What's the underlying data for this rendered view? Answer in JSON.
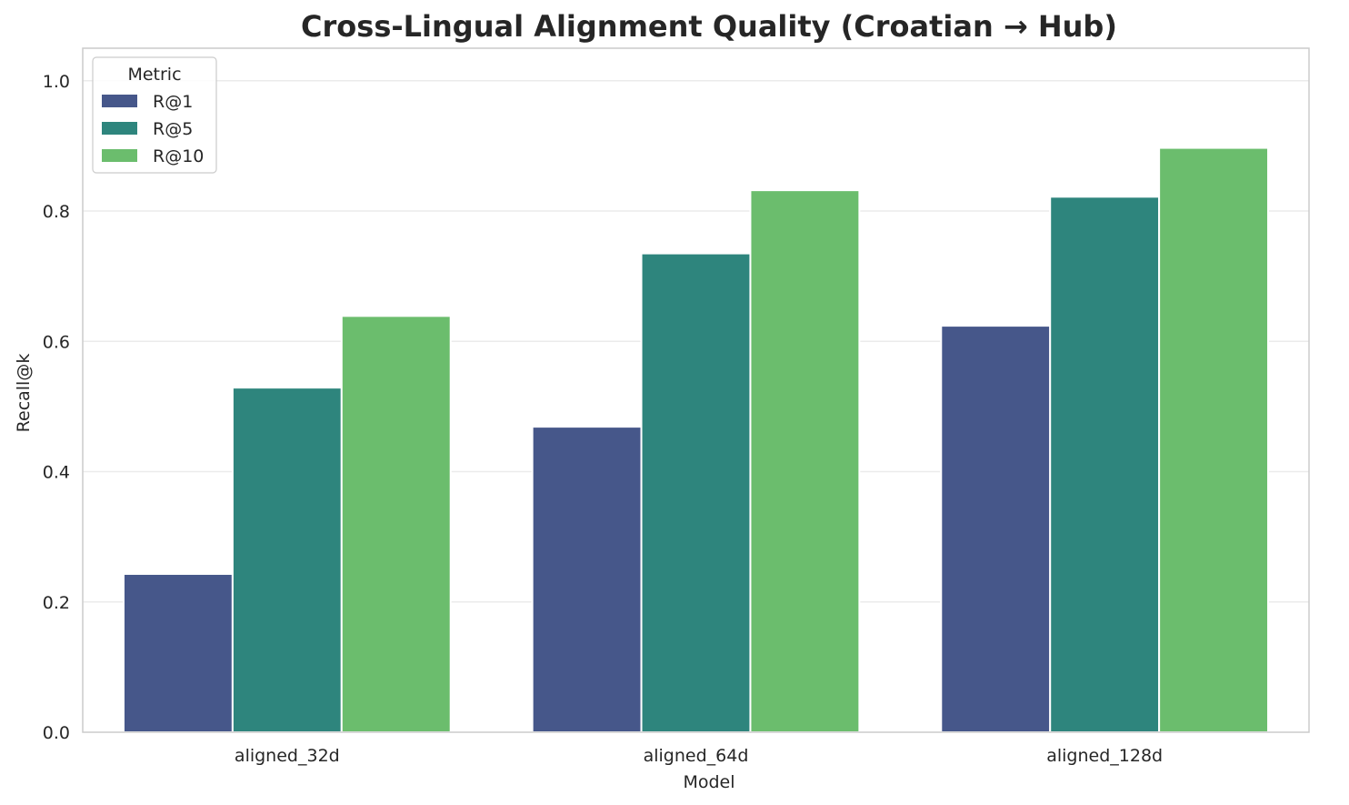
{
  "chart_data": {
    "type": "bar",
    "title": "Cross-Lingual Alignment Quality (Croatian → Hub)",
    "xlabel": "Model",
    "ylabel": "Recall@k",
    "categories": [
      "aligned_32d",
      "aligned_64d",
      "aligned_128d"
    ],
    "series": [
      {
        "name": "R@1",
        "color": "#46578a",
        "values": [
          0.243,
          0.469,
          0.624
        ]
      },
      {
        "name": "R@5",
        "color": "#2e857d",
        "values": [
          0.529,
          0.735,
          0.822
        ]
      },
      {
        "name": "R@10",
        "color": "#6bbd6d",
        "values": [
          0.639,
          0.832,
          0.897
        ]
      }
    ],
    "ylim": [
      0,
      1.05
    ],
    "yticks": [
      "0.0",
      "0.2",
      "0.4",
      "0.6",
      "0.8",
      "1.0"
    ],
    "grid": "horizontal",
    "legend": {
      "title": "Metric",
      "placement": "top-left"
    }
  }
}
